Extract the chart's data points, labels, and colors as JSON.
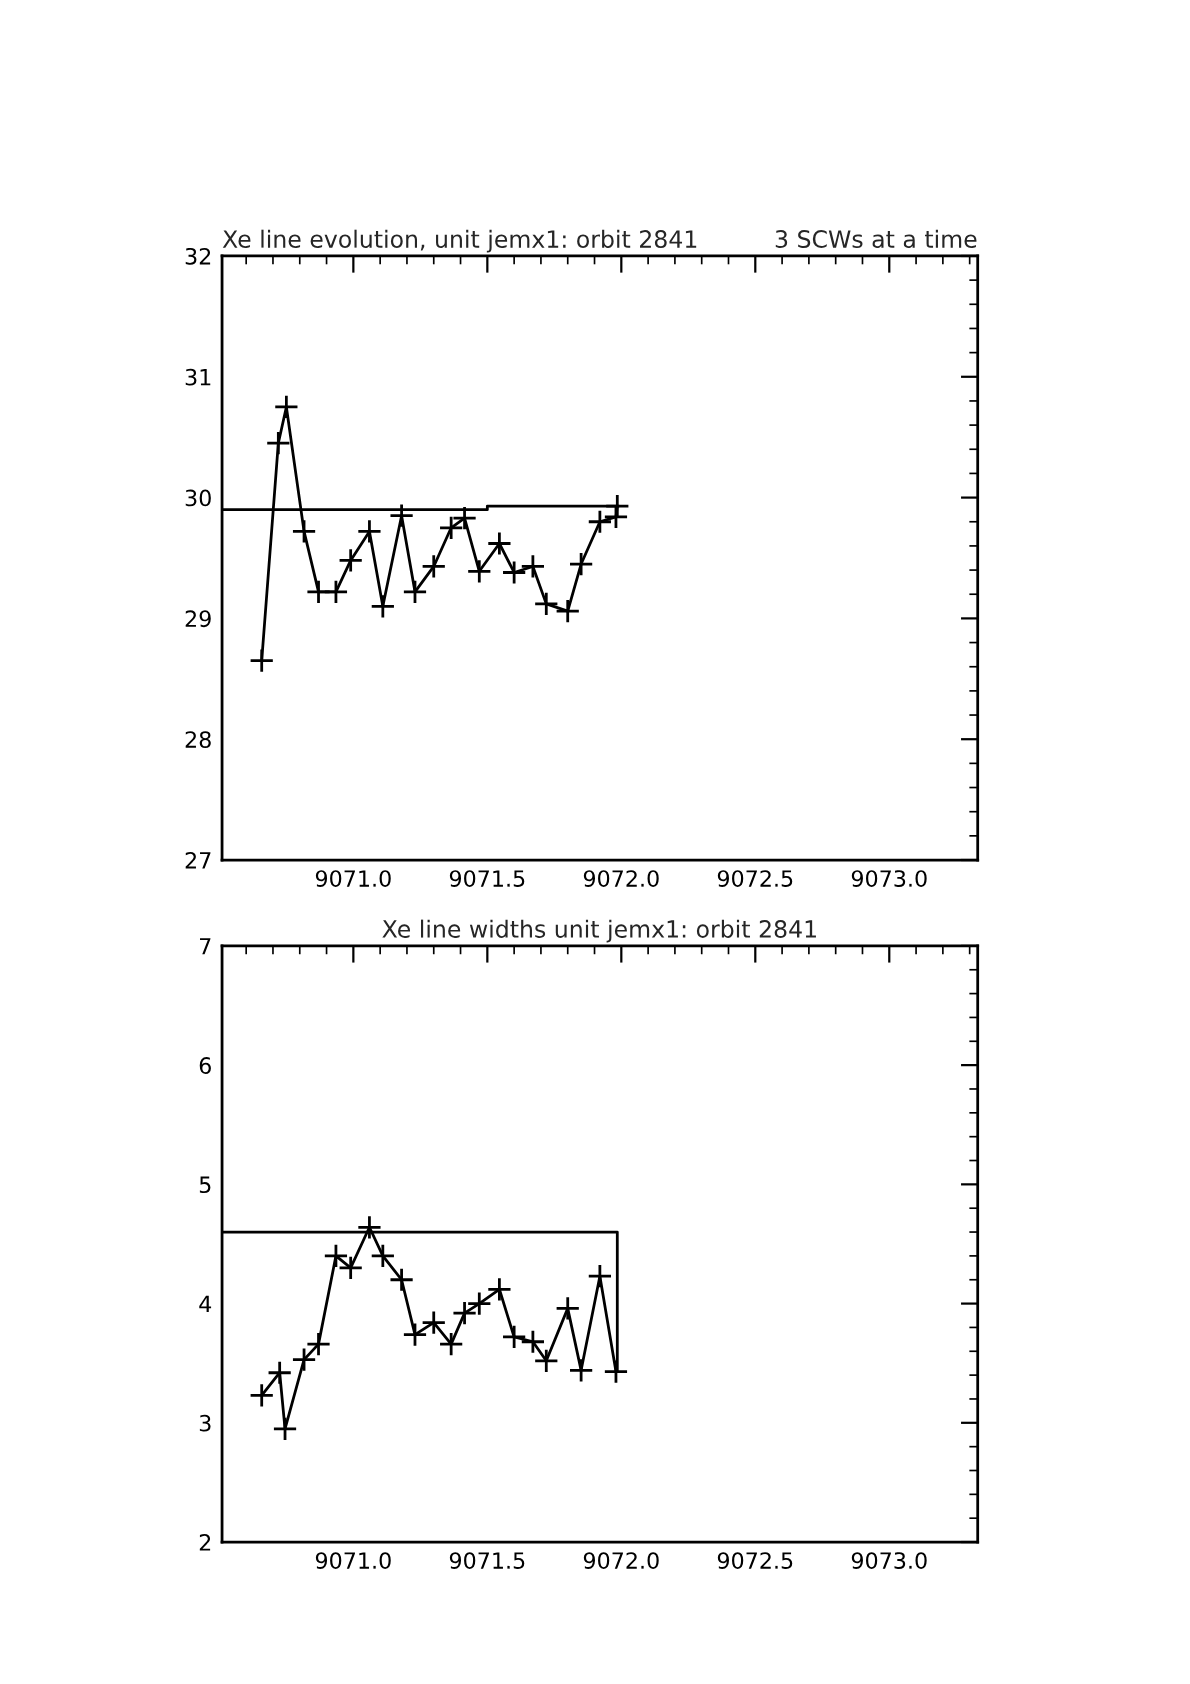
{
  "chart_data": [
    {
      "type": "line",
      "title": "Xe line evolution, unit jemx1: orbit 2841",
      "subtitle": "3 SCWs at a time",
      "xlim": [
        9070.51,
        9073.33
      ],
      "ylim": [
        27,
        32
      ],
      "xticks": [
        {
          "value": 9071.0,
          "label": "9071.0"
        },
        {
          "value": 9071.5,
          "label": "9071.5"
        },
        {
          "value": 9072.0,
          "label": "9072.0"
        },
        {
          "value": 9072.5,
          "label": "9072.5"
        },
        {
          "value": 9073.0,
          "label": "9073.0"
        }
      ],
      "yticks": [
        27,
        28,
        29,
        30,
        31,
        32
      ],
      "grid": false,
      "legend": false,
      "series": [
        {
          "color": "#000000",
          "marker": "cross",
          "x": [
            9070.658,
            9070.72,
            9070.75,
            9070.816,
            9070.87,
            9070.935,
            9070.99,
            9071.06,
            9071.11,
            9071.18,
            9071.23,
            9071.3,
            9071.365,
            9071.415,
            9071.47,
            9071.545,
            9071.6,
            9071.67,
            9071.72,
            9071.8,
            9071.85,
            9071.92,
            9071.98,
            9071.985
          ],
          "values": [
            28.65,
            30.45,
            30.75,
            29.72,
            29.22,
            29.22,
            29.48,
            29.72,
            29.1,
            29.85,
            29.22,
            29.43,
            29.75,
            29.83,
            29.39,
            29.62,
            29.38,
            29.43,
            29.12,
            29.06,
            29.45,
            29.8,
            29.84,
            29.93
          ]
        },
        {
          "color": "#000000",
          "marker": "none",
          "x": [
            9070.51,
            9071.5,
            9071.5,
            9071.99
          ],
          "values": [
            29.9,
            29.9,
            29.93,
            29.93
          ]
        }
      ]
    },
    {
      "type": "line",
      "title": "Xe line widths unit jemx1: orbit 2841",
      "xlim": [
        9070.51,
        9073.33
      ],
      "ylim": [
        2,
        7
      ],
      "xticks": [
        {
          "value": 9071.0,
          "label": "9071.0"
        },
        {
          "value": 9071.5,
          "label": "9071.5"
        },
        {
          "value": 9072.0,
          "label": "9072.0"
        },
        {
          "value": 9072.5,
          "label": "9072.5"
        },
        {
          "value": 9073.0,
          "label": "9073.0"
        }
      ],
      "yticks": [
        2,
        3,
        4,
        5,
        6,
        7
      ],
      "grid": false,
      "legend": false,
      "series": [
        {
          "color": "#000000",
          "marker": "cross",
          "x": [
            9070.658,
            9070.725,
            9070.745,
            9070.816,
            9070.87,
            9070.935,
            9070.99,
            9071.06,
            9071.11,
            9071.18,
            9071.23,
            9071.3,
            9071.365,
            9071.415,
            9071.47,
            9071.545,
            9071.6,
            9071.67,
            9071.72,
            9071.8,
            9071.85,
            9071.92,
            9071.98
          ],
          "values": [
            3.23,
            3.42,
            2.95,
            3.53,
            3.66,
            4.4,
            4.3,
            4.64,
            4.4,
            4.2,
            3.74,
            3.84,
            3.66,
            3.92,
            4.0,
            4.12,
            3.72,
            3.68,
            3.52,
            3.96,
            3.44,
            4.23,
            3.43
          ]
        },
        {
          "color": "#000000",
          "marker": "none",
          "x": [
            9070.51,
            9071.985,
            9071.985
          ],
          "values": [
            4.6,
            4.6,
            3.43
          ]
        }
      ]
    }
  ]
}
